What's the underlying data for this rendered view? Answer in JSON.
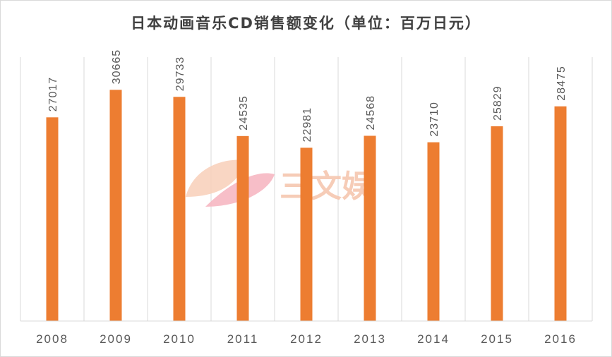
{
  "watermark": {
    "text": "三文娱",
    "color": "#f6c7b0",
    "petal_colors": [
      "#f9d2bd",
      "#f7b7c3"
    ]
  },
  "chart_data": {
    "type": "bar",
    "title": "日本动画音乐CD销售额变化（单位：百万日元）",
    "xlabel": "",
    "ylabel": "",
    "categories": [
      "2008",
      "2009",
      "2010",
      "2011",
      "2012",
      "2013",
      "2014",
      "2015",
      "2016"
    ],
    "values": [
      27017,
      30665,
      29733,
      24535,
      22981,
      24568,
      23710,
      25829,
      28475
    ],
    "ylim": [
      0,
      35000
    ],
    "data_labels": [
      "27017",
      "30665",
      "29733",
      "24535",
      "22981",
      "24568",
      "23710",
      "25829",
      "28475"
    ],
    "bar_color": "#ed7d31",
    "grid": "vertical category separators",
    "legend": "none"
  }
}
